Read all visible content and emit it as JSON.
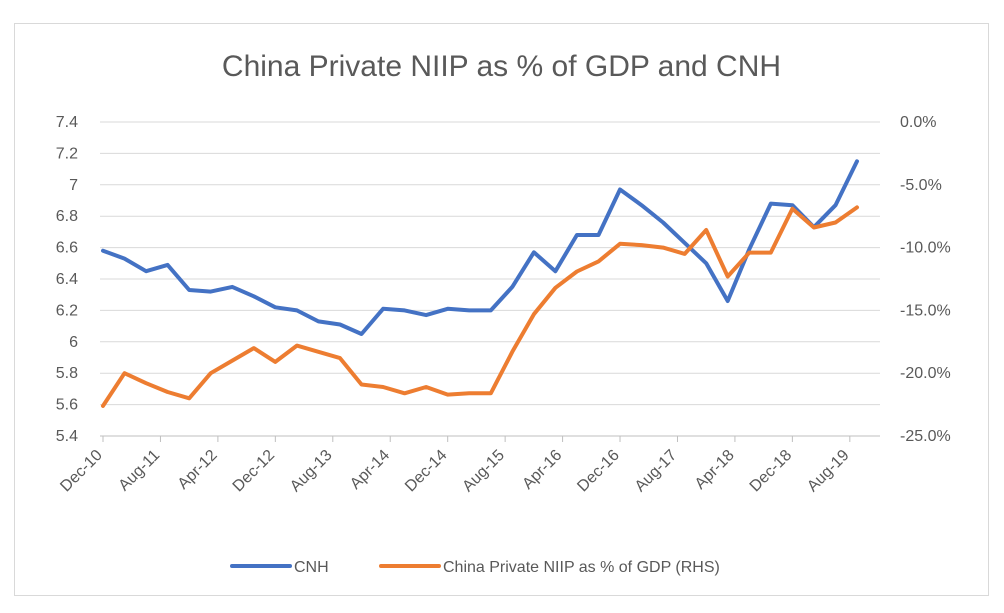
{
  "chart_data": {
    "type": "line",
    "title": "China Private NIIP as % of GDP and CNH",
    "x_tick_labels": [
      "Dec-10",
      "Aug-11",
      "Apr-12",
      "Dec-12",
      "Aug-13",
      "Apr-14",
      "Dec-14",
      "Aug-15",
      "Apr-16",
      "Dec-16",
      "Aug-17",
      "Apr-18",
      "Dec-18",
      "Aug-19"
    ],
    "x": [
      "Dec-10",
      "Mar-11",
      "Jun-11",
      "Sep-11",
      "Dec-11",
      "Mar-12",
      "Jun-12",
      "Sep-12",
      "Dec-12",
      "Mar-13",
      "Jun-13",
      "Sep-13",
      "Dec-13",
      "Mar-14",
      "Jun-14",
      "Sep-14",
      "Dec-14",
      "Mar-15",
      "Jun-15",
      "Sep-15",
      "Dec-15",
      "Mar-16",
      "Jun-16",
      "Sep-16",
      "Dec-16",
      "Mar-17",
      "Jun-17",
      "Sep-17",
      "Dec-17",
      "Mar-18",
      "Jun-18",
      "Sep-18",
      "Dec-18",
      "Mar-19",
      "Jun-19",
      "Sep-19"
    ],
    "y_left": {
      "min": 5.4,
      "max": 7.4,
      "step": 0.2,
      "tick_labels": [
        "5.4",
        "5.6",
        "5.8",
        "6",
        "6.2",
        "6.4",
        "6.6",
        "6.8",
        "7",
        "7.2",
        "7.4"
      ]
    },
    "y_right": {
      "min": -25.0,
      "max": 0.0,
      "step": 5.0,
      "tick_labels": [
        "-25.0%",
        "-20.0%",
        "-15.0%",
        "-10.0%",
        "-5.0%",
        "0.0%"
      ]
    },
    "grid": true,
    "legend_position": "bottom",
    "series": [
      {
        "name": "CNH",
        "axis": "left",
        "color": "#4472C4",
        "values": [
          6.58,
          6.53,
          6.45,
          6.49,
          6.33,
          6.32,
          6.35,
          6.29,
          6.22,
          6.2,
          6.13,
          6.11,
          6.05,
          6.21,
          6.2,
          6.17,
          6.21,
          6.2,
          6.2,
          6.35,
          6.57,
          6.45,
          6.68,
          6.68,
          6.97,
          6.87,
          6.76,
          6.63,
          6.5,
          6.26,
          6.59,
          6.88,
          6.87,
          6.73,
          6.87,
          7.15
        ]
      },
      {
        "name": "China Private NIIP as % of GDP (RHS)",
        "axis": "right",
        "color": "#ED7D31",
        "values": [
          -22.6,
          -20.0,
          -20.8,
          -21.5,
          -22.0,
          -20.0,
          -19.0,
          -18.0,
          -19.1,
          -17.8,
          -18.3,
          -18.8,
          -20.9,
          -21.1,
          -21.6,
          -21.1,
          -21.7,
          -21.6,
          -21.6,
          -18.3,
          -15.3,
          -13.2,
          -11.9,
          -11.1,
          -9.7,
          -9.8,
          -10.0,
          -10.5,
          -8.6,
          -12.3,
          -10.4,
          -10.4,
          -6.9,
          -8.4,
          -8.0,
          -6.8
        ]
      }
    ]
  }
}
